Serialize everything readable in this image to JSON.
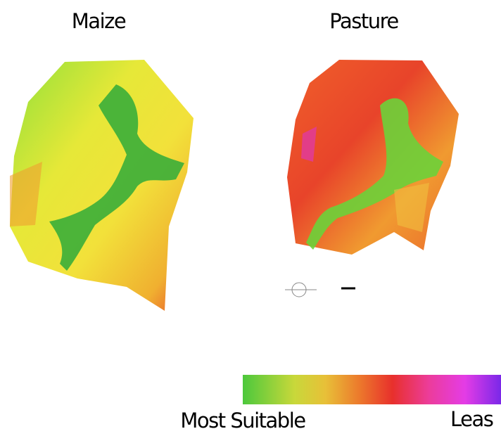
{
  "maps": [
    {
      "title": "Maize"
    },
    {
      "title": "Pasture"
    }
  ],
  "legend": {
    "low_label": "Most Suitable",
    "high_label": "Leas"
  }
}
